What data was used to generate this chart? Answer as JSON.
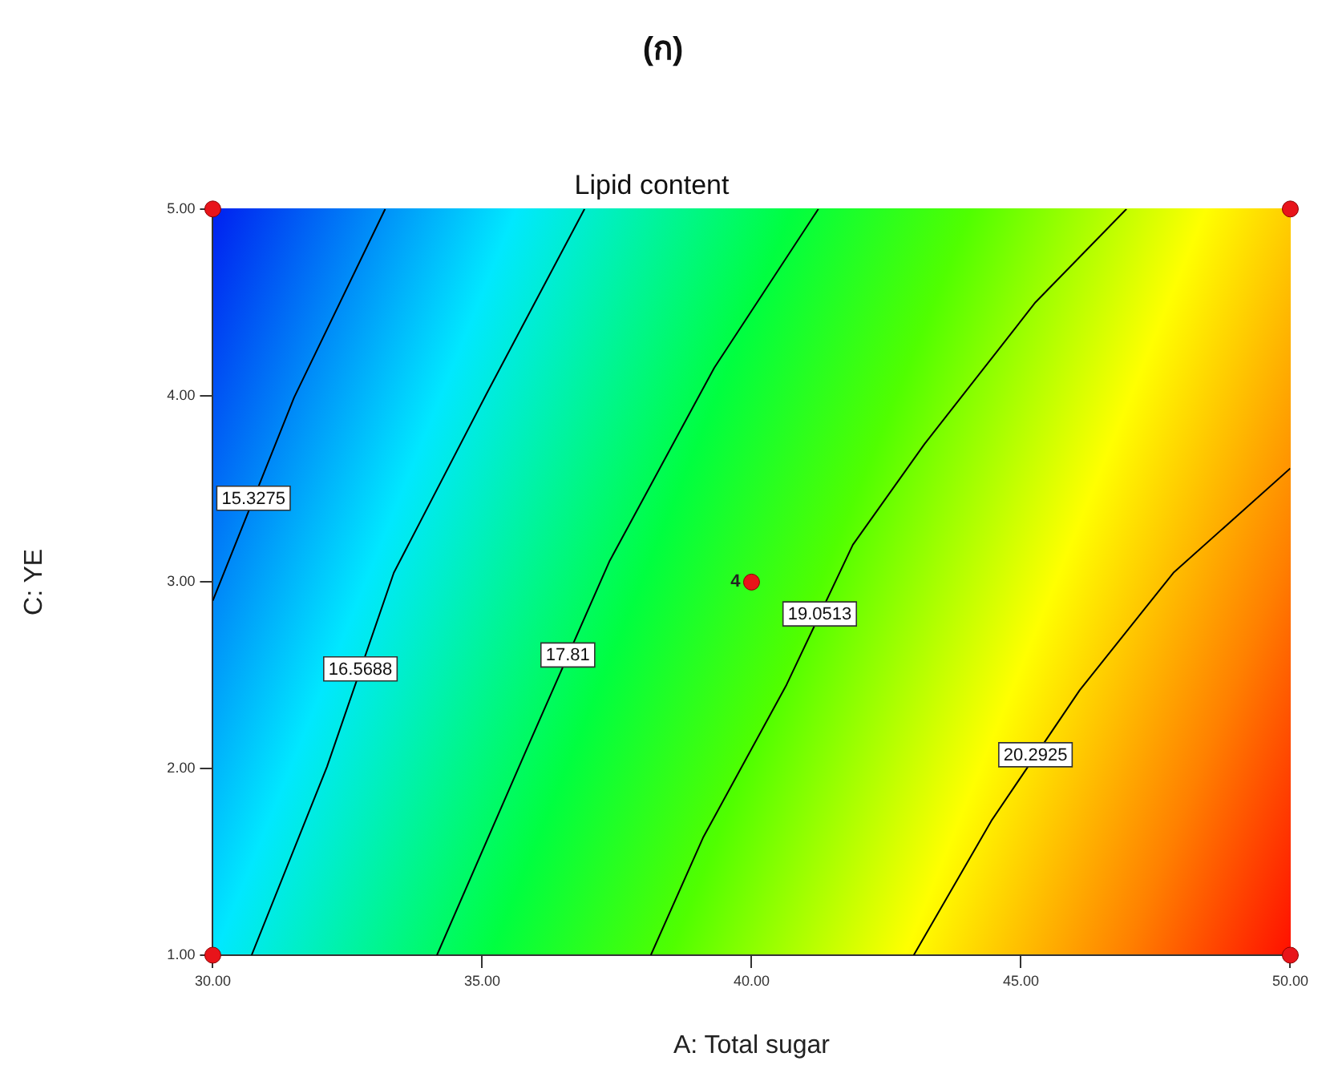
{
  "chart_data": {
    "type": "line",
    "title": "Lipid content",
    "xlabel": "A: Total sugar",
    "ylabel": "C: YE",
    "annotations": [
      "(ก)",
      {
        "text": "4",
        "x": 40,
        "y": 3
      }
    ],
    "xlim": [
      30,
      50
    ],
    "xticks": [
      {
        "value": 30,
        "label": "30.00"
      },
      {
        "value": 35,
        "label": "35.00"
      },
      {
        "value": 40,
        "label": "40.00"
      },
      {
        "value": 45,
        "label": "45.00"
      },
      {
        "value": 50,
        "label": "50.00"
      }
    ],
    "ylim": [
      1,
      5
    ],
    "yticks": [
      {
        "value": 1,
        "label": "1.00"
      },
      {
        "value": 2,
        "label": "2.00"
      },
      {
        "value": 3,
        "label": "3.00"
      },
      {
        "value": 4,
        "label": "4.00"
      },
      {
        "value": 5,
        "label": "5.00"
      }
    ],
    "grid": false,
    "legend": false,
    "series": [
      {
        "name": "15.3275",
        "color": "#000000",
        "x": [
          30,
          31.51,
          33.2
        ],
        "values": [
          2.9,
          3.99,
          5
        ]
      },
      {
        "name": "16.5688",
        "color": "#000000",
        "x": [
          30.72,
          32.12,
          33.36,
          35.1,
          36.9
        ],
        "values": [
          1,
          2.01,
          3.05,
          4.02,
          5
        ]
      },
      {
        "name": "17.81",
        "color": "#000000",
        "x": [
          34.16,
          35.82,
          37.36,
          39.31,
          41.24
        ],
        "values": [
          1,
          2.1,
          3.11,
          4.15,
          5
        ]
      },
      {
        "name": "19.0513",
        "color": "#000000",
        "x": [
          38.13,
          39.1,
          40.65,
          41.88,
          43.21,
          45.27,
          46.96
        ],
        "values": [
          1,
          1.63,
          2.45,
          3.2,
          3.74,
          4.5,
          5
        ]
      },
      {
        "name": "20.2925",
        "color": "#000000",
        "x": [
          43.01,
          44.45,
          46.09,
          47.83,
          50
        ],
        "values": [
          1,
          1.72,
          2.42,
          3.05,
          3.61
        ]
      },
      {
        "type": "scatter",
        "marker": "circle",
        "color": "#e8141a",
        "x": [
          30,
          30,
          50,
          50,
          40
        ],
        "values": [
          1,
          5,
          1,
          5,
          3
        ]
      }
    ]
  }
}
